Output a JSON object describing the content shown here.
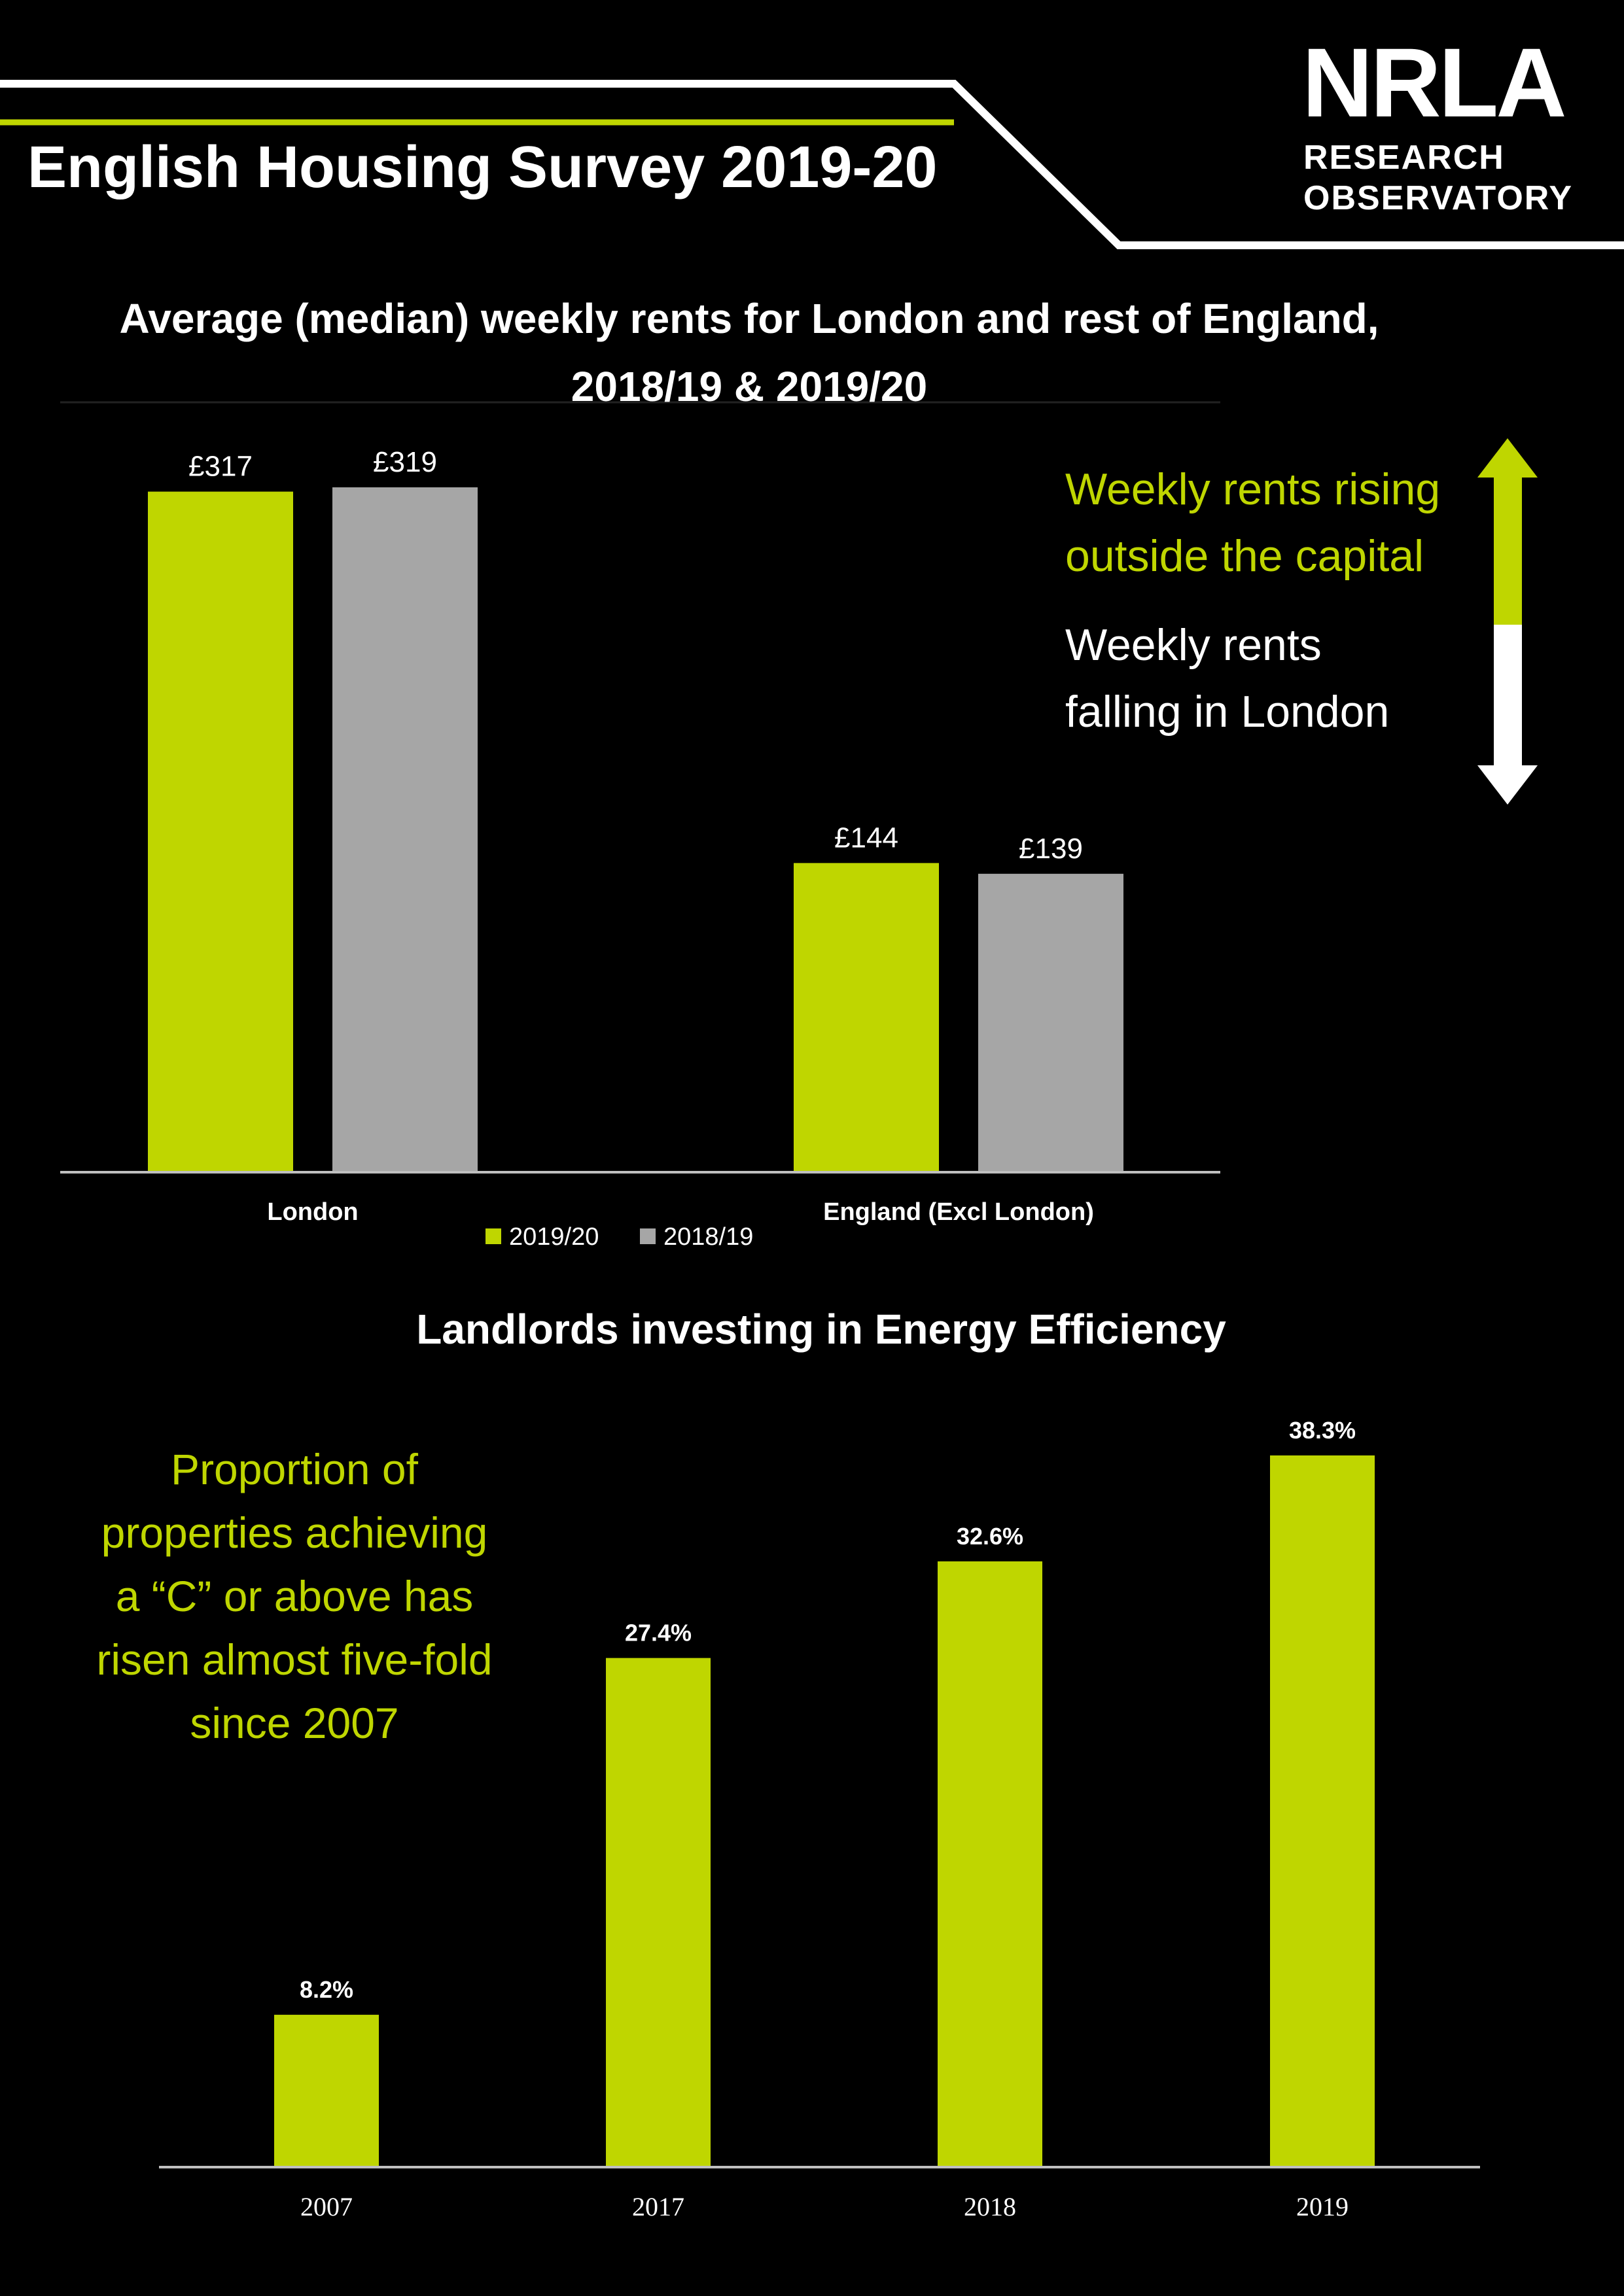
{
  "header": {
    "title": "English Housing Survey 2019-20",
    "brand": "NRLA",
    "brand_sub_line1": "RESEARCH",
    "brand_sub_line2": "OBSERVATORY"
  },
  "colors": {
    "accent": "#BFD600",
    "grey": "#A6A6A6",
    "background": "#000000",
    "text": "#FFFFFF"
  },
  "rent_chart_notes": {
    "rising": [
      "Weekly rents rising",
      "outside the capital"
    ],
    "falling": [
      "Weekly rents",
      "falling in London"
    ],
    "arrow_icons": [
      "arrow-up-icon",
      "arrow-down-icon"
    ]
  },
  "energy_chart_note": [
    "Proportion of",
    "properties achieving",
    "a “C” or above has",
    "risen almost five-fold",
    "since 2007"
  ],
  "chart_data": [
    {
      "type": "bar",
      "title": "Average (median) weekly rents for London and rest of England, 2018/19 & 2019/20",
      "title_lines": [
        "Average (median) weekly rents for London and rest of England,",
        "2018/19 & 2019/20"
      ],
      "categories": [
        "London",
        "England (Excl London)"
      ],
      "series": [
        {
          "name": "2019/20",
          "values": [
            317,
            144
          ],
          "labels": [
            "£317",
            "£144"
          ],
          "color": "#BFD600"
        },
        {
          "name": "2018/19",
          "values": [
            319,
            139
          ],
          "labels": [
            "£319",
            "£139"
          ],
          "color": "#A6A6A6"
        }
      ],
      "ylim": [
        0,
        319
      ],
      "legend": "bottom",
      "grid": false
    },
    {
      "type": "bar",
      "title": "Landlords investing in Energy Efficiency",
      "categories": [
        "2007",
        "2017",
        "2018",
        "2019"
      ],
      "values": [
        8.2,
        27.4,
        32.6,
        38.3
      ],
      "labels": [
        "8.2%",
        "27.4%",
        "32.6%",
        "38.3%"
      ],
      "color": "#BFD600",
      "ylim": [
        0,
        38.3
      ],
      "grid": false
    }
  ]
}
